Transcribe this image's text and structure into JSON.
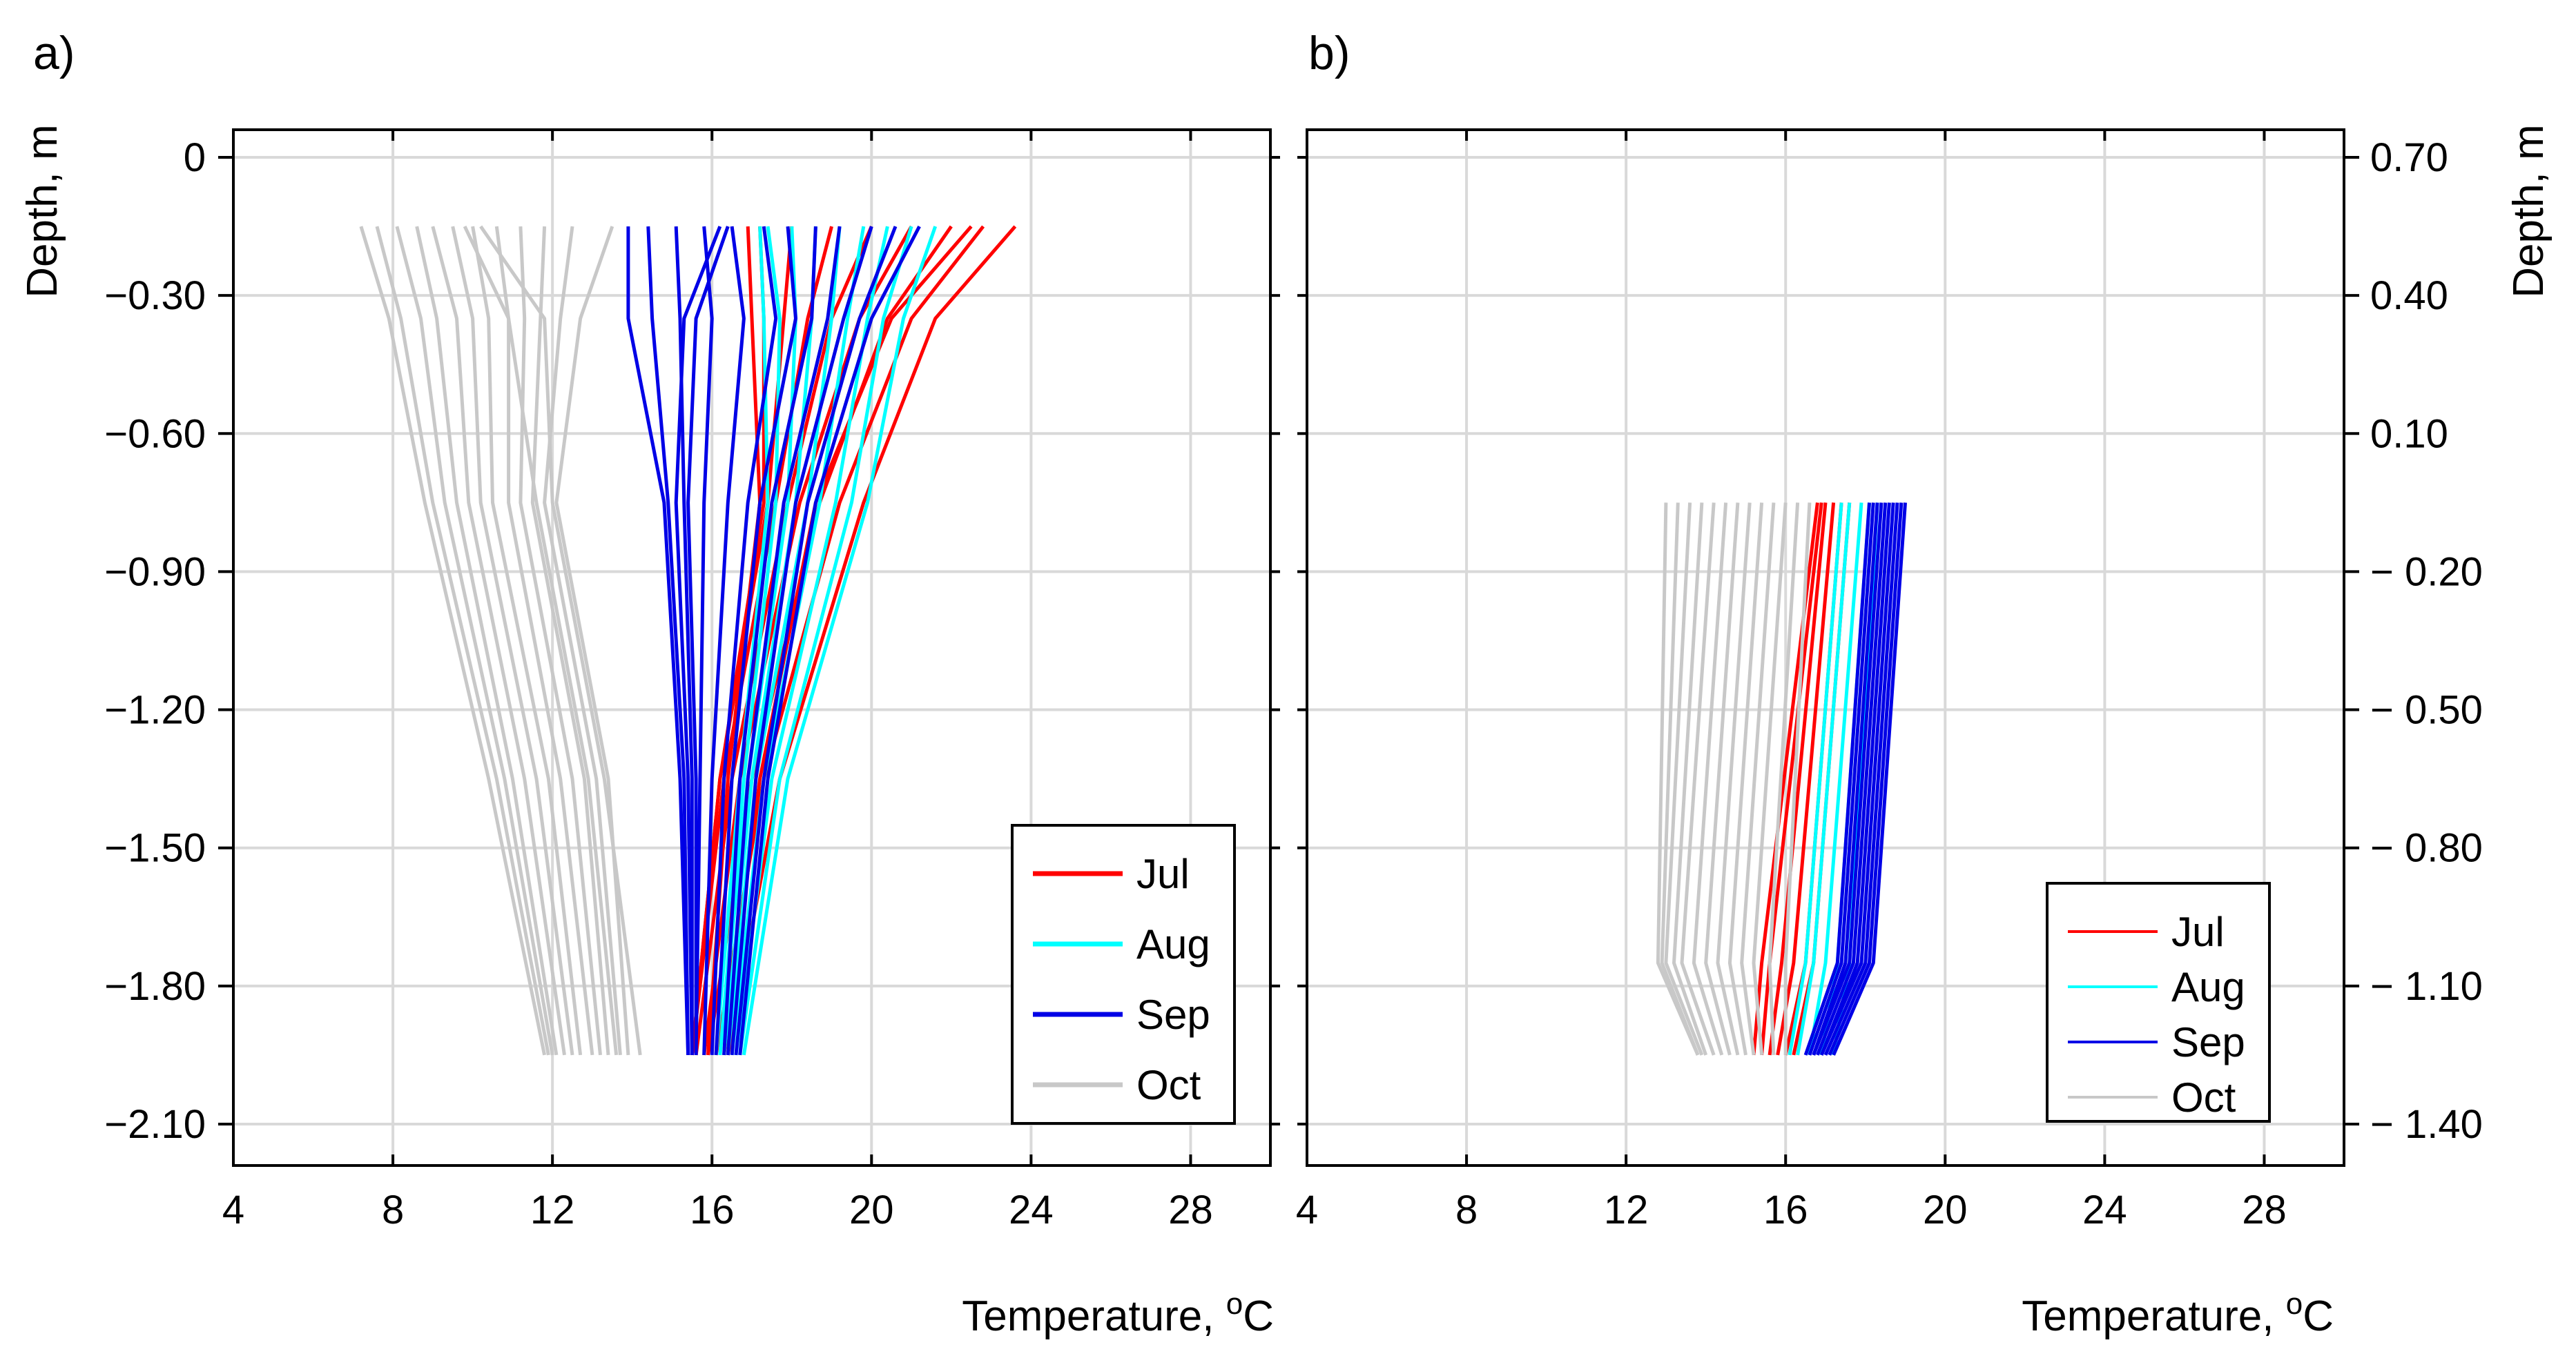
{
  "chart_data": [
    {
      "type": "line",
      "panel_label": "a)",
      "xlabel": "Temperature, °C",
      "xlabel_main": "Temperature, ",
      "xlabel_sup": "o",
      "xlabel_unit": "C",
      "ylabel": "Depth, m",
      "ylabel_side": "left",
      "xlim": [
        4,
        30
      ],
      "ylim": [
        -2.19,
        0.06
      ],
      "xticks": [
        4,
        8,
        12,
        16,
        20,
        24,
        28
      ],
      "xtick_labels": [
        "4",
        "8",
        "12",
        "16",
        "20",
        "24",
        "28"
      ],
      "yticks": [
        0,
        -0.3,
        -0.6,
        -0.9,
        -1.2,
        -1.5,
        -1.8,
        -2.1
      ],
      "ytick_labels": [
        "0",
        "−0.30",
        "−0.60",
        "−0.90",
        "−1.20",
        "−1.50",
        "−1.80",
        "−2.10"
      ],
      "grid": true,
      "legend_position": "bottom-right",
      "depths": [
        -0.15,
        -0.35,
        -0.75,
        -1.35,
        -1.95
      ],
      "series": [
        {
          "name": "Jul",
          "color": "#ff0000",
          "profiles": [
            [
              23.6,
              21.6,
              19.8,
              17.7,
              16.4
            ],
            [
              22.8,
              21.0,
              19.2,
              17.3,
              16.1
            ],
            [
              22.0,
              20.4,
              18.7,
              17.0,
              15.9
            ],
            [
              21.0,
              19.7,
              18.2,
              16.7,
              15.8
            ],
            [
              20.0,
              19.0,
              17.9,
              16.5,
              15.6
            ],
            [
              19.0,
              18.4,
              17.6,
              16.3,
              15.5
            ],
            [
              18.0,
              17.8,
              17.4,
              16.2,
              15.5
            ],
            [
              17.2,
              17.3,
              17.3,
              16.2,
              15.5
            ],
            [
              16.9,
              17.0,
              17.2,
              16.4,
              15.9
            ],
            [
              22.5,
              20.5,
              18.6,
              17.2,
              16.3
            ]
          ]
        },
        {
          "name": "Aug",
          "color": "#00ffff",
          "profiles": [
            [
              21.6,
              20.8,
              19.9,
              17.9,
              16.8
            ],
            [
              21.0,
              20.3,
              19.5,
              17.7,
              16.7
            ],
            [
              20.4,
              19.9,
              19.1,
              17.5,
              16.6
            ],
            [
              19.8,
              19.4,
              18.7,
              17.3,
              16.5
            ],
            [
              19.2,
              19.0,
              18.4,
              17.1,
              16.4
            ],
            [
              18.6,
              18.5,
              18.1,
              17.0,
              16.3
            ],
            [
              18.0,
              18.1,
              17.9,
              16.9,
              16.2
            ],
            [
              17.4,
              17.7,
              17.6,
              16.8,
              16.2
            ],
            [
              17.2,
              17.3,
              17.4,
              16.7,
              16.1
            ]
          ]
        },
        {
          "name": "Sep",
          "color": "#0000e6",
          "profiles": [
            [
              21.2,
              20.0,
              18.6,
              17.4,
              16.7
            ],
            [
              20.6,
              19.7,
              18.4,
              17.3,
              16.6
            ],
            [
              20.0,
              19.3,
              18.1,
              17.1,
              16.5
            ],
            [
              19.2,
              18.9,
              17.8,
              16.9,
              16.4
            ],
            [
              18.6,
              18.5,
              17.5,
              16.7,
              16.3
            ],
            [
              17.9,
              18.1,
              17.2,
              16.5,
              16.1
            ],
            [
              17.3,
              17.6,
              16.9,
              16.3,
              16.0
            ],
            [
              16.5,
              16.8,
              16.4,
              16.0,
              15.8
            ],
            [
              15.8,
              16.0,
              15.8,
              15.7,
              15.6
            ],
            [
              15.1,
              15.2,
              15.3,
              15.5,
              15.5
            ],
            [
              14.4,
              14.5,
              14.9,
              15.3,
              15.4
            ],
            [
              13.9,
              13.9,
              14.8,
              15.2,
              15.4
            ],
            [
              16.2,
              15.3,
              15.1,
              15.4,
              15.5
            ],
            [
              16.4,
              15.6,
              15.4,
              15.6,
              15.6
            ]
          ]
        },
        {
          "name": "Oct",
          "color": "#c8c8c8",
          "profiles": [
            [
              13.5,
              12.7,
              12.1,
              13.4,
              13.9
            ],
            [
              12.5,
              12.2,
              11.8,
              13.1,
              13.7
            ],
            [
              11.8,
              11.7,
              11.5,
              12.8,
              13.4
            ],
            [
              11.2,
              11.3,
              11.2,
              12.5,
              13.2
            ],
            [
              10.6,
              10.9,
              10.9,
              12.2,
              13.0
            ],
            [
              10.0,
              10.4,
              10.5,
              11.9,
              12.7
            ],
            [
              9.5,
              10.0,
              10.2,
              11.6,
              12.5
            ],
            [
              9.0,
              9.6,
              9.9,
              11.3,
              12.3
            ],
            [
              8.6,
              9.1,
              9.6,
              11.0,
              12.1
            ],
            [
              8.1,
              8.7,
              9.3,
              10.8,
              12.0
            ],
            [
              7.6,
              8.2,
              9.0,
              10.6,
              11.9
            ],
            [
              7.2,
              7.9,
              8.8,
              10.4,
              11.8
            ],
            [
              10.2,
              11.8,
              12.0,
              13.3,
              14.2
            ],
            [
              9.8,
              10.9,
              11.6,
              12.9,
              13.6
            ]
          ]
        }
      ]
    },
    {
      "type": "line",
      "panel_label": "b)",
      "xlabel": "Temperature, °C",
      "xlabel_main": "Temperature, ",
      "xlabel_sup": "o",
      "xlabel_unit": "C",
      "ylabel": "Depth, m",
      "ylabel_side": "right",
      "xlim": [
        4,
        30
      ],
      "ylim": [
        -1.49,
        0.76
      ],
      "xticks": [
        4,
        8,
        12,
        16,
        20,
        24,
        28
      ],
      "xtick_labels": [
        "4",
        "8",
        "12",
        "16",
        "20",
        "24",
        "28"
      ],
      "yticks": [
        0.7,
        0.4,
        0.1,
        -0.2,
        -0.5,
        -0.8,
        -1.1,
        -1.4
      ],
      "ytick_labels": [
        "0.70",
        "0.40",
        "0.10",
        "− 0.20",
        "− 0.50",
        "− 0.80",
        "− 1.10",
        "− 1.40"
      ],
      "grid": true,
      "legend_position": "bottom-right",
      "depths": [
        -0.05,
        -1.05,
        -1.25
      ],
      "series": [
        {
          "name": "Jul",
          "color": "#ff0000",
          "profiles": [
            [
              17.6,
              16.7,
              16.2
            ],
            [
              17.4,
              16.5,
              16.0
            ],
            [
              17.2,
              16.2,
              15.8
            ],
            [
              17.0,
              15.9,
              15.6
            ],
            [
              16.9,
              15.6,
              15.4
            ],
            [
              16.8,
              15.4,
              15.2
            ]
          ]
        },
        {
          "name": "Aug",
          "color": "#00ffff",
          "profiles": [
            [
              18.3,
              17.6,
              17.2
            ],
            [
              18.1,
              17.3,
              16.9
            ],
            [
              17.9,
              17.0,
              16.6
            ],
            [
              17.6,
              16.7,
              16.3
            ],
            [
              17.4,
              16.5,
              16.1
            ]
          ]
        },
        {
          "name": "Sep",
          "color": "#0000e6",
          "profiles": [
            [
              19.0,
              18.2,
              17.2
            ],
            [
              18.9,
              18.1,
              17.1
            ],
            [
              18.8,
              18.0,
              17.0
            ],
            [
              18.7,
              17.9,
              16.9
            ],
            [
              18.6,
              17.8,
              16.9
            ],
            [
              18.5,
              17.7,
              16.8
            ],
            [
              18.4,
              17.6,
              16.7
            ],
            [
              18.3,
              17.5,
              16.7
            ],
            [
              18.2,
              17.4,
              16.6
            ],
            [
              18.1,
              17.3,
              16.5
            ]
          ]
        },
        {
          "name": "Oct",
          "color": "#c8c8c8",
          "profiles": [
            [
              16.6,
              16.0,
              16.0
            ],
            [
              16.3,
              15.6,
              15.7
            ],
            [
              16.0,
              15.2,
              15.4
            ],
            [
              15.7,
              14.9,
              15.2
            ],
            [
              15.4,
              14.6,
              15.0
            ],
            [
              15.1,
              14.3,
              14.8
            ],
            [
              14.8,
              14.0,
              14.6
            ],
            [
              14.5,
              13.7,
              14.4
            ],
            [
              14.2,
              13.4,
              14.2
            ],
            [
              13.9,
              13.2,
              14.0
            ],
            [
              13.6,
              13.0,
              13.9
            ],
            [
              13.3,
              12.9,
              13.8
            ],
            [
              13.0,
              12.8,
              13.8
            ]
          ]
        }
      ]
    }
  ]
}
